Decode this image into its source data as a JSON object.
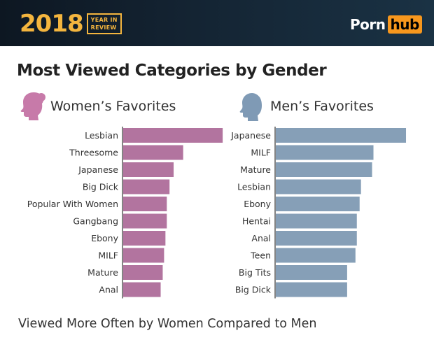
{
  "header": {
    "year": "2018",
    "year_sub_1": "YEAR IN",
    "year_sub_2": "REVIEW",
    "brand_left": "Porn",
    "brand_right": "hub"
  },
  "colors": {
    "women_bar": "#b2749f",
    "men_bar": "#869fb7",
    "women_icon": "#c77aa9",
    "men_icon": "#7f9ab5",
    "brand_orange": "#f7971d",
    "year_gold": "#f4b53e"
  },
  "panels": {
    "women": {
      "label": "Women’s Favorites",
      "icon": "woman-head-silhouette-icon"
    },
    "men": {
      "label": "Men’s Favorites",
      "icon": "man-head-silhouette-icon"
    }
  },
  "chart_data": [
    {
      "type": "bar",
      "orientation": "horizontal",
      "categories": [
        "Lesbian",
        "Threesome",
        "Japanese",
        "Big Dick",
        "Popular With Women",
        "Gangbang",
        "Ebony",
        "MILF",
        "Mature",
        "Anal"
      ],
      "values": [
        146,
        88,
        74,
        68,
        64,
        64,
        62,
        60,
        58,
        55
      ],
      "xlim": [
        0,
        150
      ],
      "grid": false,
      "axis_labels_shown": false
    },
    {
      "type": "bar",
      "orientation": "horizontal",
      "categories": [
        "Japanese",
        "MILF",
        "Mature",
        "Lesbian",
        "Ebony",
        "Hentai",
        "Anal",
        "Teen",
        "Big Tits",
        "Big Dick"
      ],
      "values": [
        188,
        141,
        139,
        123,
        121,
        117,
        117,
        115,
        103,
        103
      ],
      "xlim": [
        0,
        190
      ],
      "grid": false,
      "axis_labels_shown": false
    }
  ],
  "title": "Most Viewed Categories by Gender",
  "footer": "Viewed More Often by Women Compared to Men"
}
